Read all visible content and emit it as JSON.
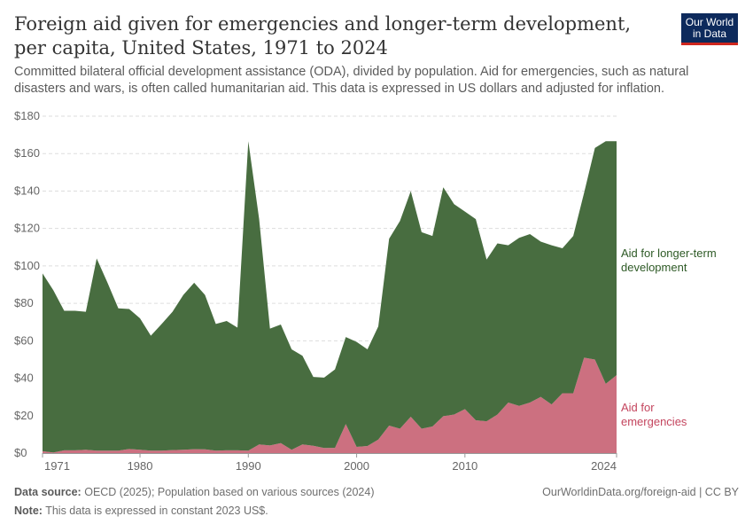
{
  "header": {
    "title": "Foreign aid given for emergencies and longer-term development, per capita, United States, 1971 to 2024",
    "subtitle": "Committed bilateral official development assistance (ODA), divided by population. Aid for emergencies, such as natural disasters and wars, is often called humanitarian aid. This data is expressed in US dollars and adjusted for inflation.",
    "logo": "Our World in Data"
  },
  "footer": {
    "source_label": "Data source:",
    "source": "OECD (2025); Population based on various sources (2024)",
    "note_label": "Note:",
    "note": "This data is expressed in constant 2023 US$.",
    "url": "OurWorldinData.org/foreign-aid | CC BY"
  },
  "chart_data": {
    "type": "area",
    "stacked": true,
    "x": [
      1971,
      1972,
      1973,
      1974,
      1975,
      1976,
      1977,
      1978,
      1979,
      1980,
      1981,
      1982,
      1983,
      1984,
      1985,
      1986,
      1987,
      1988,
      1989,
      1990,
      1991,
      1992,
      1993,
      1994,
      1995,
      1996,
      1997,
      1998,
      1999,
      2000,
      2001,
      2002,
      2003,
      2004,
      2005,
      2006,
      2007,
      2008,
      2009,
      2010,
      2011,
      2012,
      2013,
      2014,
      2015,
      2016,
      2017,
      2018,
      2019,
      2020,
      2021,
      2022,
      2023,
      2024
    ],
    "series": [
      {
        "name": "Aid for emergencies",
        "color": "#cc7080",
        "label_color": "#c4455e",
        "values": [
          1.0,
          0.3,
          1.5,
          1.5,
          1.8,
          1.3,
          1.3,
          1.3,
          2.2,
          1.8,
          1.3,
          1.3,
          1.6,
          1.8,
          2.1,
          2.0,
          1.3,
          1.5,
          1.5,
          1.3,
          4.6,
          4.1,
          5.3,
          1.8,
          4.6,
          3.9,
          2.7,
          2.8,
          15.5,
          3.3,
          3.8,
          7.2,
          14.7,
          13,
          19.4,
          13,
          14.2,
          19.7,
          20.6,
          23.5,
          17.5,
          17,
          20.6,
          27,
          25.2,
          27,
          30,
          26,
          32,
          32,
          51,
          50,
          37,
          41.6
        ]
      },
      {
        "name": "Aid for longer-term development",
        "color": "#486d40",
        "label_color": "#2e5a26",
        "values": [
          95.0,
          86.7,
          74.5,
          74.5,
          73.7,
          102.7,
          89.7,
          76.0,
          74.8,
          70.2,
          61.4,
          67.7,
          73.9,
          82.7,
          88.9,
          82.5,
          67.7,
          69.1,
          65.5,
          165.3,
          120.4,
          62.4,
          63.4,
          53.6,
          47.4,
          36.8,
          37.6,
          41.9,
          46.5,
          56.1,
          51.6,
          60.5,
          99.8,
          111,
          120.6,
          105,
          101.8,
          122.3,
          112.4,
          105.5,
          107.5,
          86.4,
          91.4,
          84,
          89.8,
          90,
          83,
          85,
          77.4,
          84,
          88,
          113,
          129.6,
          125
        ]
      }
    ],
    "ylim": [
      0,
      180
    ],
    "yticks": [
      0,
      20,
      40,
      60,
      80,
      100,
      120,
      140,
      160,
      180
    ],
    "ytick_labels": [
      "$0",
      "$20",
      "$40",
      "$60",
      "$80",
      "$100",
      "$120",
      "$140",
      "$160",
      "$180"
    ],
    "xticks": [
      1971,
      1980,
      1990,
      2000,
      2010,
      2024
    ],
    "xtick_labels": [
      "1971",
      "1980",
      "1990",
      "2000",
      "2010",
      "2024"
    ],
    "grid": "horizontal dashed",
    "legend": "right, inline labels"
  }
}
